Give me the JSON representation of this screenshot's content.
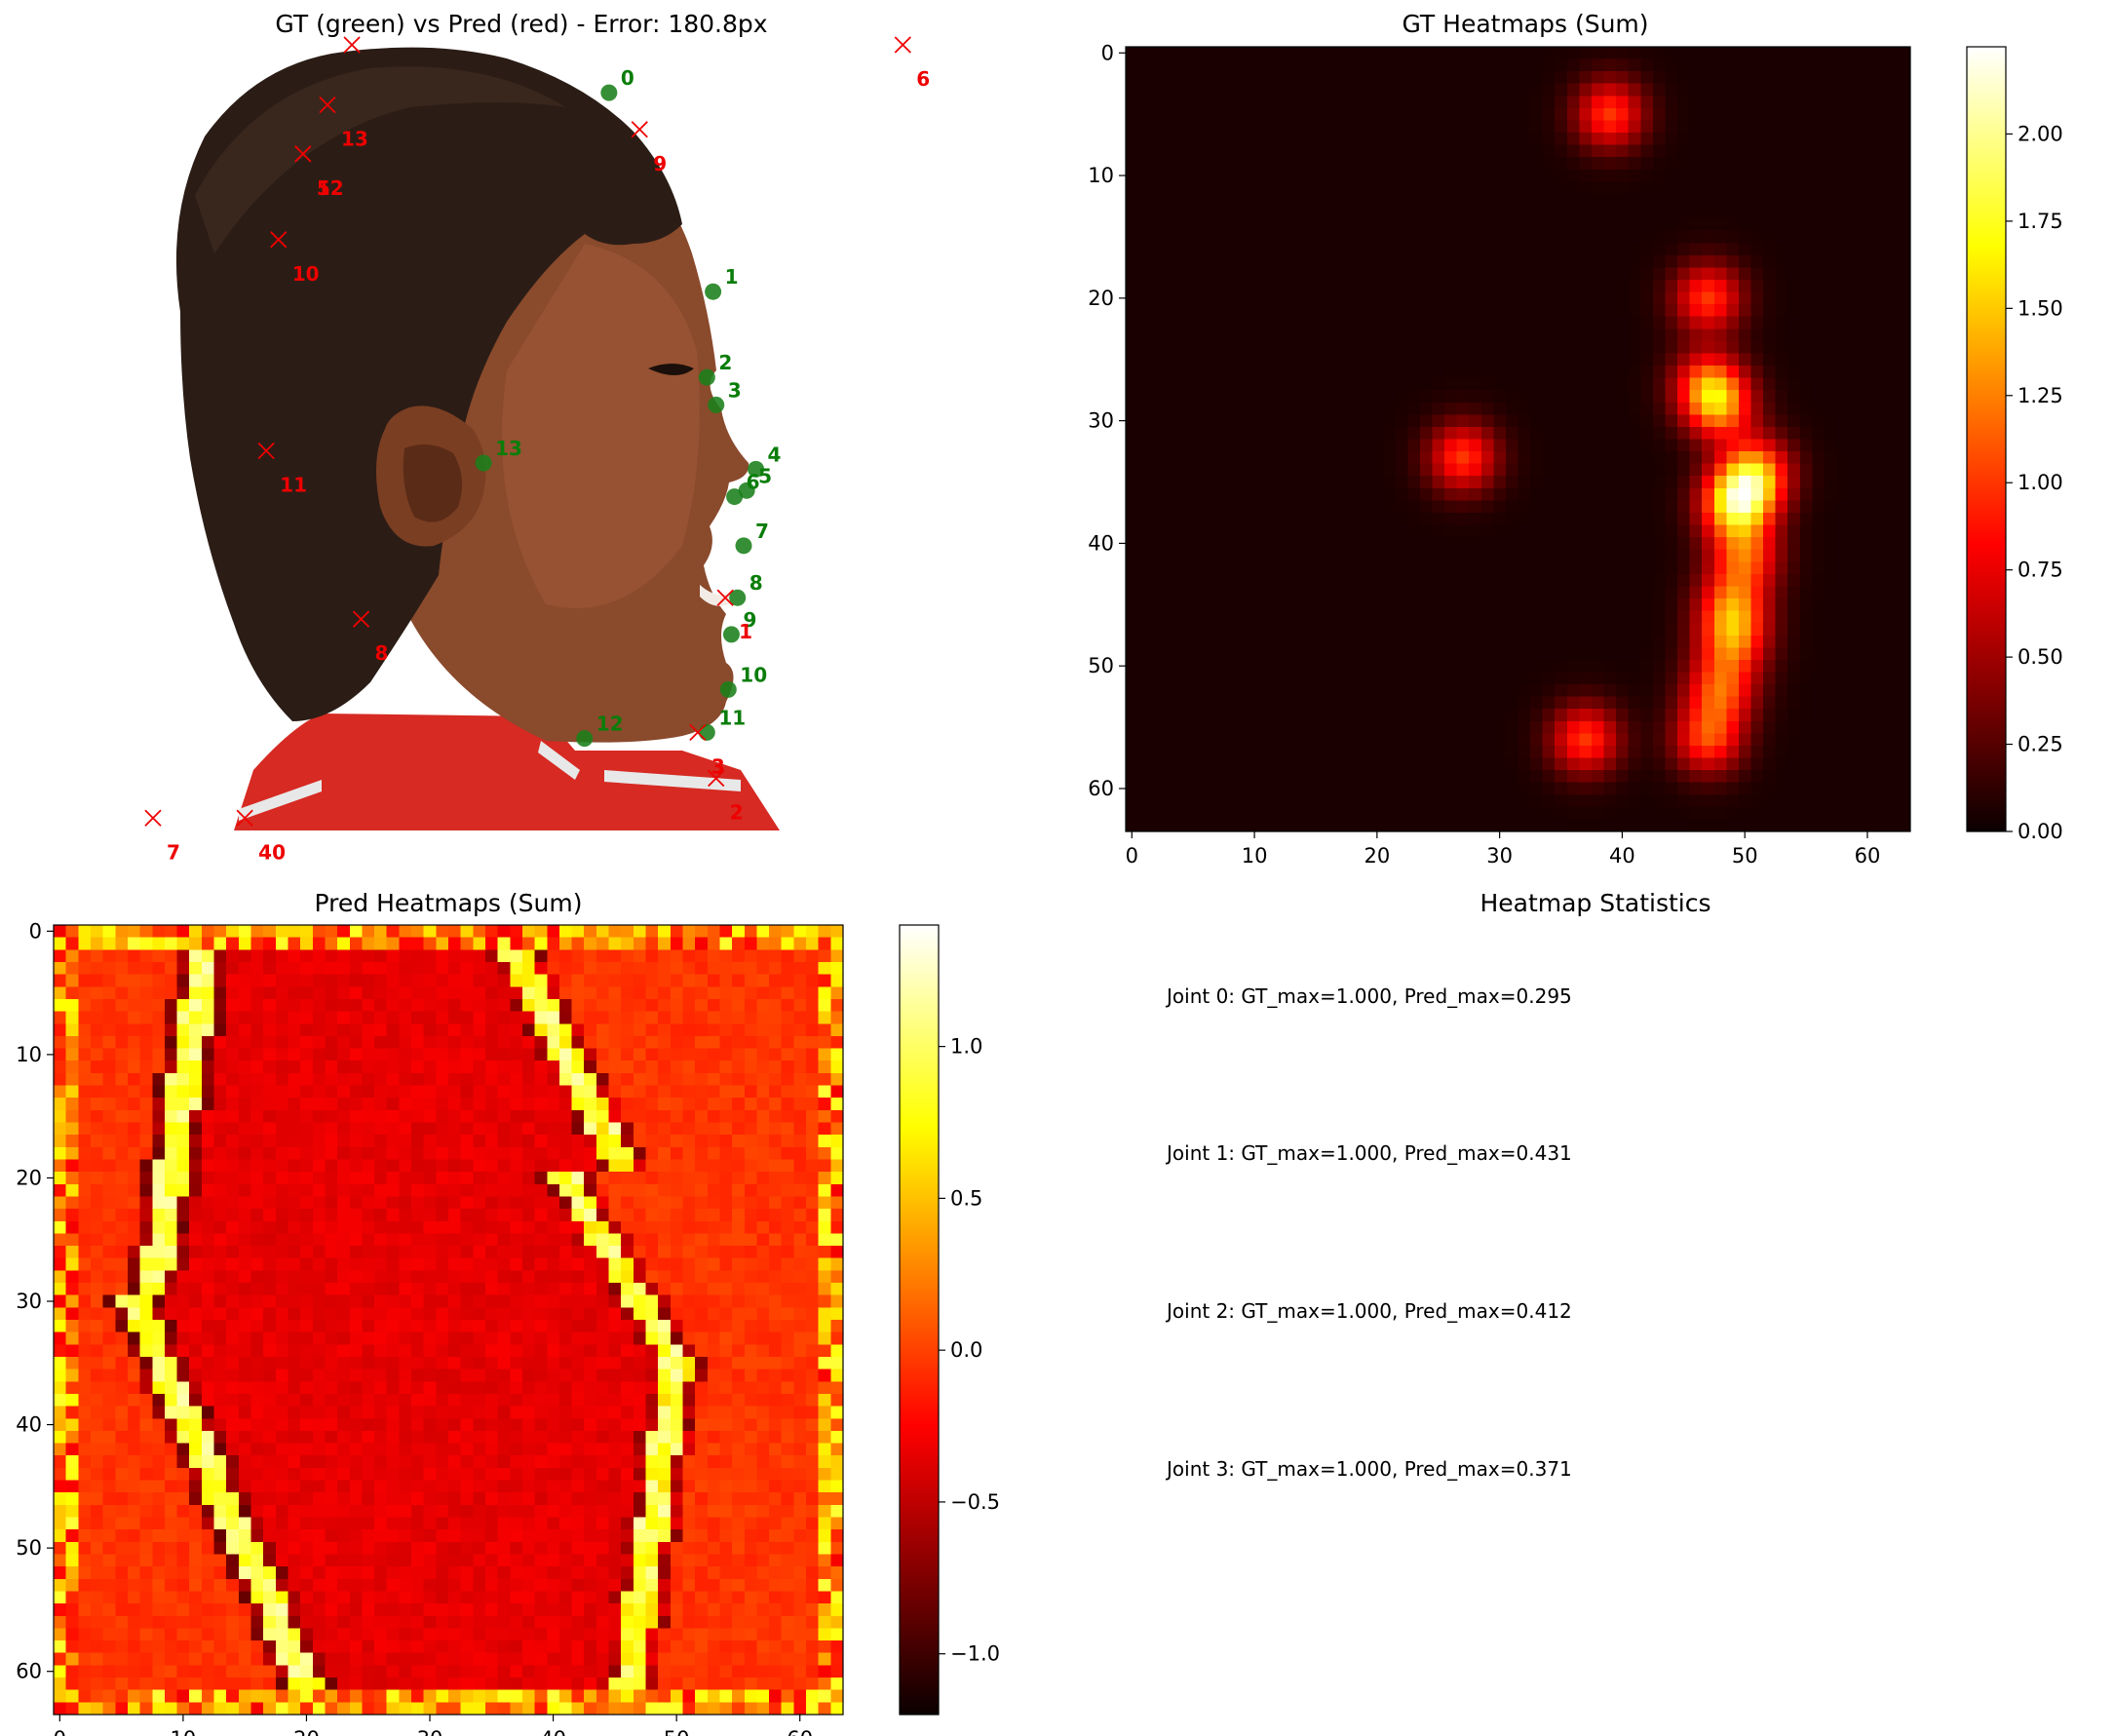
{
  "titles": {
    "overlay": "GT (green) vs Pred (red) - Error: 180.8px",
    "gt": "GT Heatmaps (Sum)",
    "pred": "Pred Heatmaps (Sum)",
    "stats": "Heatmap Statistics"
  },
  "stats_lines": [
    "Joint 0: GT_max=1.000, Pred_max=0.295",
    "Joint 1: GT_max=1.000, Pred_max=0.431",
    "Joint 2: GT_max=1.000, Pred_max=0.412",
    "Joint 3: GT_max=1.000, Pred_max=0.371"
  ],
  "colors": {
    "gt": "#1a7f1a",
    "pred": "#ee0000",
    "colormap": "hot"
  },
  "chart_data": [
    {
      "type": "scatter",
      "title": "GT (green) vs Pred (red) - Error: 180.8px",
      "axes_visible": false,
      "image_domain": {
        "x": [
          0,
          256
        ],
        "y": [
          0,
          256
        ]
      },
      "series": [
        {
          "points": [
            {
              "label": "0",
              "x": 156,
              "y": 15
            },
            {
              "label": "1",
              "x": 190,
              "y": 80
            },
            {
              "label": "2",
              "x": 188,
              "y": 108
            },
            {
              "label": "3",
              "x": 191,
              "y": 117
            },
            {
              "label": "4",
              "x": 204,
              "y": 138
            },
            {
              "label": "5",
              "x": 201,
              "y": 145
            },
            {
              "label": "6",
              "x": 197,
              "y": 147
            },
            {
              "label": "7",
              "x": 200,
              "y": 163
            },
            {
              "label": "8",
              "x": 198,
              "y": 180
            },
            {
              "label": "9",
              "x": 196,
              "y": 192
            },
            {
              "label": "10",
              "x": 195,
              "y": 210
            },
            {
              "label": "11",
              "x": 188,
              "y": 224
            },
            {
              "label": "12",
              "x": 148,
              "y": 226
            },
            {
              "label": "13",
              "x": 115,
              "y": 136
            }
          ]
        },
        {
          "points": [
            {
              "label": "1",
              "x": 194,
              "y": 180
            },
            {
              "label": "2",
              "x": 191,
              "y": 239
            },
            {
              "label": "3",
              "x": 185,
              "y": 224
            },
            {
              "label": "40",
              "x": 37,
              "y": 252
            },
            {
              "label": "5",
              "x": 56,
              "y": 35
            },
            {
              "label": "6",
              "x": 252,
              "y": -3
            },
            {
              "label": "7",
              "x": 7,
              "y": 252
            },
            {
              "label": "8",
              "x": 75,
              "y": 187
            },
            {
              "label": "9",
              "x": 166,
              "y": 27
            },
            {
              "label": "10",
              "x": 48,
              "y": 63
            },
            {
              "label": "11",
              "x": 44,
              "y": 132
            },
            {
              "label": "12",
              "x": 56,
              "y": 35
            },
            {
              "label": "13",
              "x": 64,
              "y": 19
            },
            {
              "label": "",
              "x": 72,
              "y": -2
            }
          ]
        }
      ]
    },
    {
      "type": "heatmap",
      "title": "GT Heatmaps (Sum)",
      "grid": [
        64,
        64
      ],
      "colormap": "hot",
      "vmin": 0.0,
      "vmax": 2.25,
      "xticks": [
        0,
        10,
        20,
        30,
        40,
        50,
        60
      ],
      "yticks": [
        0,
        10,
        20,
        30,
        40,
        50,
        60
      ],
      "colorbar_ticks": [
        "0.00",
        "0.25",
        "0.50",
        "0.75",
        "1.00",
        "1.25",
        "1.50",
        "1.75",
        "2.00"
      ],
      "blobs": [
        {
          "x": 39,
          "y": 5,
          "value": 1.0
        },
        {
          "x": 47,
          "y": 20,
          "value": 1.0
        },
        {
          "x": 47,
          "y": 27,
          "value": 1.0
        },
        {
          "x": 48,
          "y": 29,
          "value": 1.0
        },
        {
          "x": 51,
          "y": 34,
          "value": 1.0
        },
        {
          "x": 50,
          "y": 36,
          "value": 1.0
        },
        {
          "x": 49,
          "y": 37,
          "value": 1.0
        },
        {
          "x": 50,
          "y": 41,
          "value": 1.0
        },
        {
          "x": 49,
          "y": 45,
          "value": 1.0
        },
        {
          "x": 49,
          "y": 48,
          "value": 1.0
        },
        {
          "x": 48,
          "y": 52,
          "value": 1.0
        },
        {
          "x": 47,
          "y": 56,
          "value": 1.0
        },
        {
          "x": 37,
          "y": 56,
          "value": 1.0
        },
        {
          "x": 27,
          "y": 33,
          "value": 1.0
        }
      ]
    },
    {
      "type": "heatmap",
      "title": "Pred Heatmaps (Sum)",
      "grid": [
        64,
        64
      ],
      "colormap": "hot",
      "vmin": -1.2,
      "vmax": 1.4,
      "xticks": [
        0,
        10,
        20,
        30,
        40,
        50,
        60
      ],
      "yticks": [
        0,
        10,
        20,
        30,
        40,
        50,
        60
      ],
      "colorbar_ticks": [
        "−1.0",
        "−0.5",
        "0.0",
        "0.5",
        "1.0"
      ]
    }
  ]
}
